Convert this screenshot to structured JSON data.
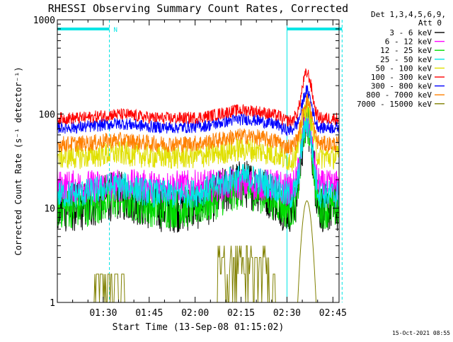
{
  "chart_data": {
    "type": "line",
    "title": "RHESSI Observing Summary Count Rates, Corrected",
    "xlabel": "Start Time (13-Sep-08 01:15:02)",
    "ylabel": "Corrected Count Rate (s⁻¹ detector⁻¹)",
    "yscale": "log",
    "ylim": [
      1,
      1000
    ],
    "xlim_minutes": [
      0,
      92
    ],
    "x_ticks": [
      {
        "label": "01:30",
        "min": 15
      },
      {
        "label": "01:45",
        "min": 30
      },
      {
        "label": "02:00",
        "min": 45
      },
      {
        "label": "02:15",
        "min": 60
      },
      {
        "label": "02:30",
        "min": 75
      },
      {
        "label": "02:45",
        "min": 90
      }
    ],
    "y_ticks": [
      {
        "label": "1",
        "value": 1
      },
      {
        "label": "10",
        "value": 10
      },
      {
        "label": "100",
        "value": 100
      },
      {
        "label": "1000",
        "value": 1000
      }
    ],
    "legend_header": [
      "Det 1,3,4,5,6,9,",
      "Att 0"
    ],
    "legend_position": "right",
    "timestamp": "15-Oct-2021 08:55",
    "flag_label": "N",
    "vertical_markers_minutes": [
      0,
      17,
      75,
      93
    ],
    "bars_minutes": [
      [
        0,
        17
      ],
      [
        75,
        93
      ]
    ],
    "bar_color": "#00e5e5",
    "series": [
      {
        "name": "3 - 6 keV",
        "color": "#000000",
        "base": 10,
        "peak": 18,
        "flare": 80,
        "noise": 0.12
      },
      {
        "name": "6 - 12 keV",
        "color": "#ff00ff",
        "base": 17,
        "peak": 18,
        "flare": 85,
        "noise": 0.08
      },
      {
        "name": "12 - 25 keV",
        "color": "#00dd00",
        "base": 10,
        "peak": 16,
        "flare": 80,
        "noise": 0.1
      },
      {
        "name": "25 - 50 keV",
        "color": "#00e5e5",
        "base": 14,
        "peak": 21,
        "flare": 80,
        "noise": 0.07
      },
      {
        "name": "50 - 100 keV",
        "color": "#e0e000",
        "base": 35,
        "peak": 42,
        "flare": 120,
        "noise": 0.06
      },
      {
        "name": "100 - 300 keV",
        "color": "#ff0000",
        "base": 90,
        "peak": 110,
        "flare": 270,
        "noise": 0.03
      },
      {
        "name": "300 - 800 keV",
        "color": "#0000ff",
        "base": 72,
        "peak": 88,
        "flare": 175,
        "noise": 0.03
      },
      {
        "name": "800 - 7000 keV",
        "color": "#ff8000",
        "base": 48,
        "peak": 58,
        "flare": 140,
        "noise": 0.04
      },
      {
        "name": "7000 - 15000 keV",
        "color": "#808000",
        "base": 1,
        "peak": 4,
        "flare": 12,
        "noise": 0.0
      }
    ]
  }
}
